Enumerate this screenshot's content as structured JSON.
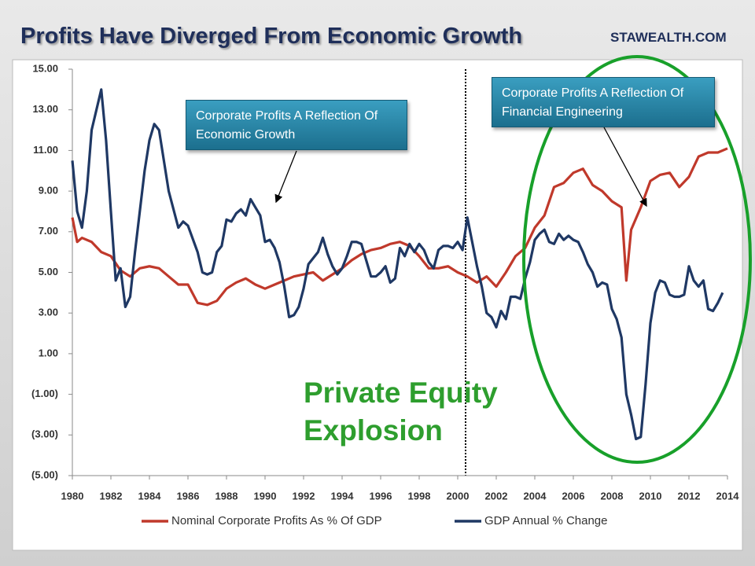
{
  "chart_data": {
    "type": "line",
    "title": "Profits Have Diverged From Economic Growth",
    "source": "STAWEALTH.COM",
    "annotations": [
      "Corporate Profits A Reflection Of Economic Growth",
      "Corporate Profits A Reflection Of Financial Engineering",
      "Private Equity Explosion"
    ],
    "xlim": [
      1980,
      2014
    ],
    "xticks": [
      1980,
      1982,
      1984,
      1986,
      1988,
      1990,
      1992,
      1994,
      1996,
      1998,
      2000,
      2002,
      2004,
      2006,
      2008,
      2010,
      2012,
      2014
    ],
    "ylim": [
      -5,
      15
    ],
    "yticks": [
      {
        "value": 15,
        "label": "15.00"
      },
      {
        "value": 13,
        "label": "13.00"
      },
      {
        "value": 11,
        "label": "11.00"
      },
      {
        "value": 9,
        "label": "9.00"
      },
      {
        "value": 7,
        "label": "7.00"
      },
      {
        "value": 5,
        "label": "5.00"
      },
      {
        "value": 3,
        "label": "3.00"
      },
      {
        "value": 1,
        "label": "1.00"
      },
      {
        "value": -1,
        "label": "(1.00)"
      },
      {
        "value": -3,
        "label": "(3.00)"
      },
      {
        "value": -5,
        "label": "(5.00)"
      }
    ],
    "series": [
      {
        "name": "Nominal Corporate Profits As % Of GDP",
        "color": "#c0392b",
        "x": [
          1980.0,
          1980.25,
          1980.5,
          1981.0,
          1981.5,
          1982.0,
          1982.5,
          1983.0,
          1983.5,
          1984.0,
          1984.5,
          1985.0,
          1985.5,
          1986.0,
          1986.5,
          1987.0,
          1987.5,
          1988.0,
          1988.5,
          1989.0,
          1989.5,
          1990.0,
          1990.5,
          1991.0,
          1991.5,
          1992.0,
          1992.5,
          1993.0,
          1993.5,
          1994.0,
          1994.5,
          1995.0,
          1995.5,
          1996.0,
          1996.5,
          1997.0,
          1997.5,
          1998.0,
          1998.5,
          1999.0,
          1999.5,
          2000.0,
          2000.5,
          2001.0,
          2001.5,
          2002.0,
          2002.5,
          2003.0,
          2003.5,
          2004.0,
          2004.5,
          2005.0,
          2005.5,
          2006.0,
          2006.5,
          2007.0,
          2007.5,
          2008.0,
          2008.5,
          2008.75,
          2009.0,
          2009.5,
          2010.0,
          2010.5,
          2011.0,
          2011.5,
          2012.0,
          2012.5,
          2013.0,
          2013.5,
          2014.0
        ],
        "values": [
          7.7,
          6.5,
          6.7,
          6.5,
          6.0,
          5.8,
          5.1,
          4.8,
          5.2,
          5.3,
          5.2,
          4.8,
          4.4,
          4.4,
          3.5,
          3.4,
          3.6,
          4.2,
          4.5,
          4.7,
          4.4,
          4.2,
          4.4,
          4.6,
          4.8,
          4.9,
          5.0,
          4.6,
          4.9,
          5.2,
          5.6,
          5.9,
          6.1,
          6.2,
          6.4,
          6.5,
          6.3,
          5.8,
          5.2,
          5.2,
          5.3,
          5.0,
          4.8,
          4.5,
          4.8,
          4.3,
          5.0,
          5.8,
          6.2,
          7.2,
          7.8,
          9.2,
          9.4,
          9.9,
          10.1,
          9.3,
          9.0,
          8.5,
          8.2,
          4.6,
          7.1,
          8.2,
          9.5,
          9.8,
          9.9,
          9.2,
          9.7,
          10.7,
          10.9,
          10.9,
          11.1
        ]
      },
      {
        "name": "GDP Annual % Change",
        "color": "#1f3864",
        "x": [
          1980.0,
          1980.25,
          1980.5,
          1980.75,
          1981.0,
          1981.5,
          1981.75,
          1982.0,
          1982.25,
          1982.5,
          1982.75,
          1983.0,
          1983.25,
          1983.5,
          1983.75,
          1984.0,
          1984.25,
          1984.5,
          1984.75,
          1985.0,
          1985.5,
          1985.75,
          1986.0,
          1986.5,
          1986.75,
          1987.0,
          1987.25,
          1987.5,
          1987.75,
          1988.0,
          1988.25,
          1988.5,
          1988.75,
          1989.0,
          1989.25,
          1989.5,
          1989.75,
          1990.0,
          1990.25,
          1990.5,
          1990.75,
          1991.0,
          1991.25,
          1991.5,
          1991.75,
          1992.0,
          1992.25,
          1992.5,
          1992.75,
          1993.0,
          1993.25,
          1993.5,
          1993.75,
          1994.0,
          1994.25,
          1994.5,
          1994.75,
          1995.0,
          1995.25,
          1995.5,
          1995.75,
          1996.0,
          1996.25,
          1996.5,
          1996.75,
          1997.0,
          1997.25,
          1997.5,
          1997.75,
          1998.0,
          1998.25,
          1998.5,
          1998.75,
          1999.0,
          1999.25,
          1999.5,
          1999.75,
          2000.0,
          2000.25,
          2000.5,
          2000.75,
          2001.0,
          2001.25,
          2001.5,
          2001.75,
          2002.0,
          2002.25,
          2002.5,
          2002.75,
          2003.0,
          2003.25,
          2003.5,
          2003.75,
          2004.0,
          2004.25,
          2004.5,
          2004.75,
          2005.0,
          2005.25,
          2005.5,
          2005.75,
          2006.0,
          2006.25,
          2006.5,
          2006.75,
          2007.0,
          2007.25,
          2007.5,
          2007.75,
          2008.0,
          2008.25,
          2008.5,
          2008.75,
          2009.0,
          2009.25,
          2009.5,
          2009.75,
          2010.0,
          2010.25,
          2010.5,
          2010.75,
          2011.0,
          2011.25,
          2011.5,
          2011.75,
          2012.0,
          2012.25,
          2012.5,
          2012.75,
          2013.0,
          2013.25,
          2013.5,
          2013.75
        ],
        "values": [
          10.5,
          8.0,
          7.2,
          9.0,
          12.0,
          14.0,
          11.5,
          8.0,
          4.6,
          5.2,
          3.3,
          3.8,
          6.0,
          8.0,
          10.0,
          11.5,
          12.3,
          12.0,
          10.5,
          9.0,
          7.2,
          7.5,
          7.3,
          6.0,
          5.0,
          4.9,
          5.0,
          6.0,
          6.3,
          7.6,
          7.5,
          7.9,
          8.1,
          7.8,
          8.6,
          8.2,
          7.8,
          6.5,
          6.6,
          6.2,
          5.5,
          4.3,
          2.8,
          2.9,
          3.3,
          4.2,
          5.4,
          5.7,
          6.0,
          6.7,
          5.9,
          5.3,
          4.9,
          5.2,
          5.8,
          6.5,
          6.5,
          6.4,
          5.6,
          4.8,
          4.8,
          5.0,
          5.3,
          4.5,
          4.7,
          6.2,
          5.8,
          6.4,
          6.0,
          6.4,
          6.1,
          5.5,
          5.2,
          6.1,
          6.3,
          6.3,
          6.2,
          6.5,
          6.1,
          7.7,
          6.5,
          5.3,
          4.3,
          3.0,
          2.8,
          2.3,
          3.1,
          2.7,
          3.8,
          3.8,
          3.7,
          4.7,
          5.5,
          6.6,
          6.9,
          7.1,
          6.5,
          6.4,
          6.9,
          6.6,
          6.8,
          6.6,
          6.5,
          6.0,
          5.4,
          5.0,
          4.3,
          4.5,
          4.4,
          3.2,
          2.7,
          1.8,
          -1.0,
          -2.0,
          -3.2,
          -3.1,
          -0.5,
          2.5,
          4.0,
          4.6,
          4.5,
          3.9,
          3.8,
          3.8,
          3.9,
          5.3,
          4.6,
          4.3,
          4.6,
          3.2,
          3.1,
          3.5,
          4.0
        ]
      }
    ],
    "legend": "bottom",
    "grid": false
  }
}
